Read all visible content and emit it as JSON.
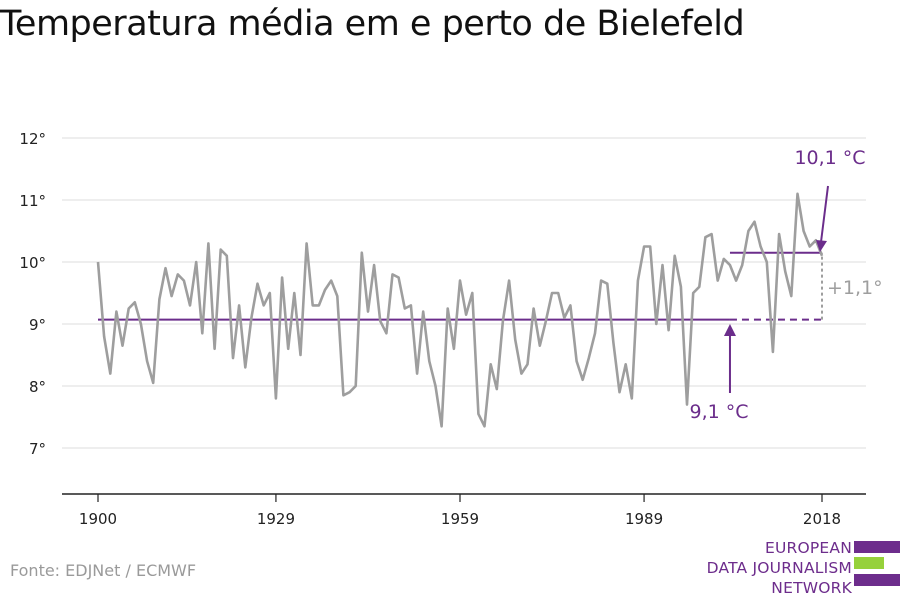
{
  "title": "Temperatura média em e perto de Bielefeld",
  "source": "Fonte: EDJNet / ECMWF",
  "logo": {
    "lines": [
      "EUROPEAN",
      "DATA JOURNALISM",
      "NETWORK"
    ],
    "colors": {
      "purple": "#6d2d8c",
      "green": "#96d13b"
    }
  },
  "colors": {
    "series": "#9e9e9e",
    "average": "#6b2d8b",
    "diff": "#9e9e9e",
    "grid": "#dddddd",
    "axis": "#222222"
  },
  "chart_data": {
    "type": "line",
    "title": "Temperatura média em e perto de Bielefeld",
    "xlabel": "",
    "ylabel": "",
    "xlim": [
      1900,
      2018
    ],
    "ylim": [
      6.8,
      12.2
    ],
    "x_ticks": [
      1900,
      1929,
      1959,
      1989,
      2018
    ],
    "x_tick_labels": [
      "1900",
      "1929",
      "1959",
      "1989",
      "2018"
    ],
    "y_ticks": [
      7,
      8,
      9,
      10,
      11,
      12
    ],
    "y_tick_labels": [
      "7°",
      "8°",
      "9°",
      "10°",
      "11°",
      "12°"
    ],
    "grid": true,
    "series": [
      {
        "x": [
          1900,
          1901,
          1902,
          1903,
          1904,
          1905,
          1906,
          1907,
          1908,
          1909,
          1910,
          1911,
          1912,
          1913,
          1914,
          1915,
          1916,
          1917,
          1918,
          1919,
          1920,
          1921,
          1922,
          1923,
          1924,
          1925,
          1926,
          1927,
          1928,
          1929,
          1930,
          1931,
          1932,
          1933,
          1934,
          1935,
          1936,
          1937,
          1938,
          1939,
          1940,
          1941,
          1942,
          1943,
          1944,
          1945,
          1946,
          1947,
          1948,
          1949,
          1950,
          1951,
          1952,
          1953,
          1954,
          1955,
          1956,
          1957,
          1958,
          1959,
          1960,
          1961,
          1962,
          1963,
          1964,
          1965,
          1966,
          1967,
          1968,
          1969,
          1970,
          1971,
          1972,
          1973,
          1974,
          1975,
          1976,
          1977,
          1978,
          1979,
          1980,
          1981,
          1982,
          1983,
          1984,
          1985,
          1986,
          1987,
          1988,
          1989,
          1990,
          1991,
          1992,
          1993,
          1994,
          1995,
          1996,
          1997,
          1998,
          1999,
          2000,
          2001,
          2002,
          2003,
          2004,
          2005,
          2006,
          2007,
          2008,
          2009,
          2010,
          2011,
          2012,
          2013,
          2014,
          2015,
          2016,
          2017,
          2018
        ],
        "values": [
          10.0,
          8.8,
          8.2,
          9.2,
          8.65,
          9.25,
          9.35,
          9.0,
          8.4,
          8.05,
          9.4,
          9.9,
          9.45,
          9.8,
          9.7,
          9.3,
          10.0,
          8.85,
          10.3,
          8.6,
          10.2,
          10.1,
          8.45,
          9.3,
          8.3,
          9.1,
          9.65,
          9.3,
          9.5,
          7.8,
          9.75,
          8.6,
          9.5,
          8.5,
          10.3,
          9.3,
          9.3,
          9.55,
          9.7,
          9.45,
          7.85,
          7.9,
          8.0,
          10.15,
          9.2,
          9.95,
          9.05,
          8.85,
          9.8,
          9.75,
          9.25,
          9.3,
          8.2,
          9.2,
          8.4,
          8.0,
          7.35,
          9.25,
          8.6,
          9.7,
          9.15,
          9.5,
          7.55,
          7.35,
          8.35,
          7.95,
          9.05,
          9.7,
          8.75,
          8.2,
          8.35,
          9.25,
          8.65,
          9.05,
          9.5,
          9.5,
          9.1,
          9.3,
          8.4,
          8.1,
          8.45,
          8.85,
          9.7,
          9.65,
          8.7,
          7.9,
          8.35,
          7.8,
          9.7,
          10.25,
          10.25,
          9.0,
          9.95,
          8.9,
          10.1,
          9.6,
          7.7,
          9.5,
          9.6,
          10.4,
          10.45,
          9.7,
          10.05,
          9.95,
          9.7,
          9.95,
          10.5,
          10.65,
          10.25,
          10.0,
          8.55,
          10.45,
          9.85,
          9.45,
          11.1,
          10.5,
          10.25,
          10.35,
          10.1
        ]
      }
    ],
    "averages": [
      {
        "label": "9,1 °C",
        "value": 9.07,
        "from": 1900,
        "to": 2018,
        "dashed_from": 2003
      },
      {
        "label": "10,1 °C",
        "value": 10.15,
        "from": 2003,
        "to": 2018
      }
    ],
    "difference": {
      "label": "+1,1°",
      "x": 2018,
      "from": 9.07,
      "to": 10.15
    }
  }
}
